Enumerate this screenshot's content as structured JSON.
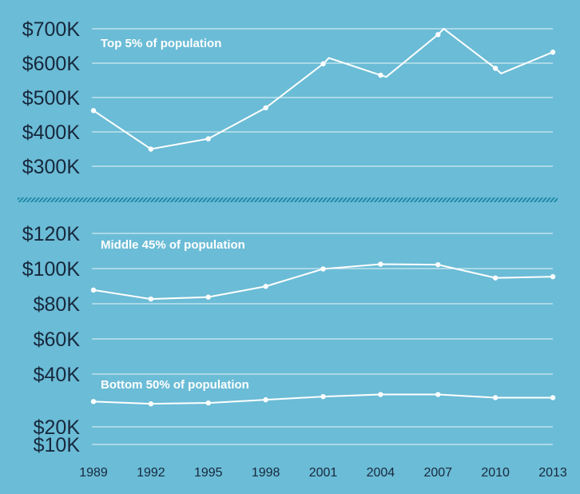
{
  "colors": {
    "background": "#6bbcd6",
    "text": "#17283d",
    "line": "#ffffff",
    "break_band": "#1f8aa8"
  },
  "chart_data": [
    {
      "type": "line",
      "x": [
        1989,
        1992,
        1995,
        1998,
        2001,
        2004,
        2007,
        2010,
        2013
      ],
      "x_tick_labels": [
        "1989",
        "1992",
        "1995",
        "1998",
        "2001",
        "2004",
        "2007",
        "2010",
        "2013"
      ],
      "y_tick_labels": [
        "$700K",
        "$600K",
        "$500K",
        "$400K",
        "$300K"
      ],
      "y_ticks": [
        700000,
        600000,
        500000,
        400000,
        300000
      ],
      "ylim": [
        300000,
        700000
      ],
      "grid": true,
      "series": [
        {
          "name": "Top 5% of population",
          "values": [
            462000,
            350000,
            380000,
            470000,
            598000,
            565000,
            683000,
            585000,
            632000
          ],
          "intermediate_points": [
            [
              2001.3,
              615000
            ],
            [
              2004.3,
              560000
            ],
            [
              2007.3,
              700000
            ],
            [
              2010.3,
              570000
            ]
          ]
        }
      ]
    },
    {
      "type": "line",
      "x": [
        1989,
        1992,
        1995,
        1998,
        2001,
        2004,
        2007,
        2010,
        2013
      ],
      "y_tick_labels": [
        "$120K",
        "$100K",
        "$80K",
        "$60K",
        "$40K",
        "$20K",
        "$10K"
      ],
      "y_ticks": [
        120000,
        100000,
        80000,
        60000,
        40000,
        20000,
        10000
      ],
      "ylim": [
        10000,
        120000
      ],
      "grid": true,
      "series": [
        {
          "name": "Middle 45% of population",
          "values": [
            87800,
            82700,
            83800,
            89900,
            99800,
            102500,
            102200,
            94700,
            95400
          ]
        },
        {
          "name": "Bottom 50% of population",
          "values": [
            24400,
            23100,
            23600,
            25400,
            27200,
            28400,
            28400,
            26600,
            26600
          ]
        }
      ]
    }
  ]
}
